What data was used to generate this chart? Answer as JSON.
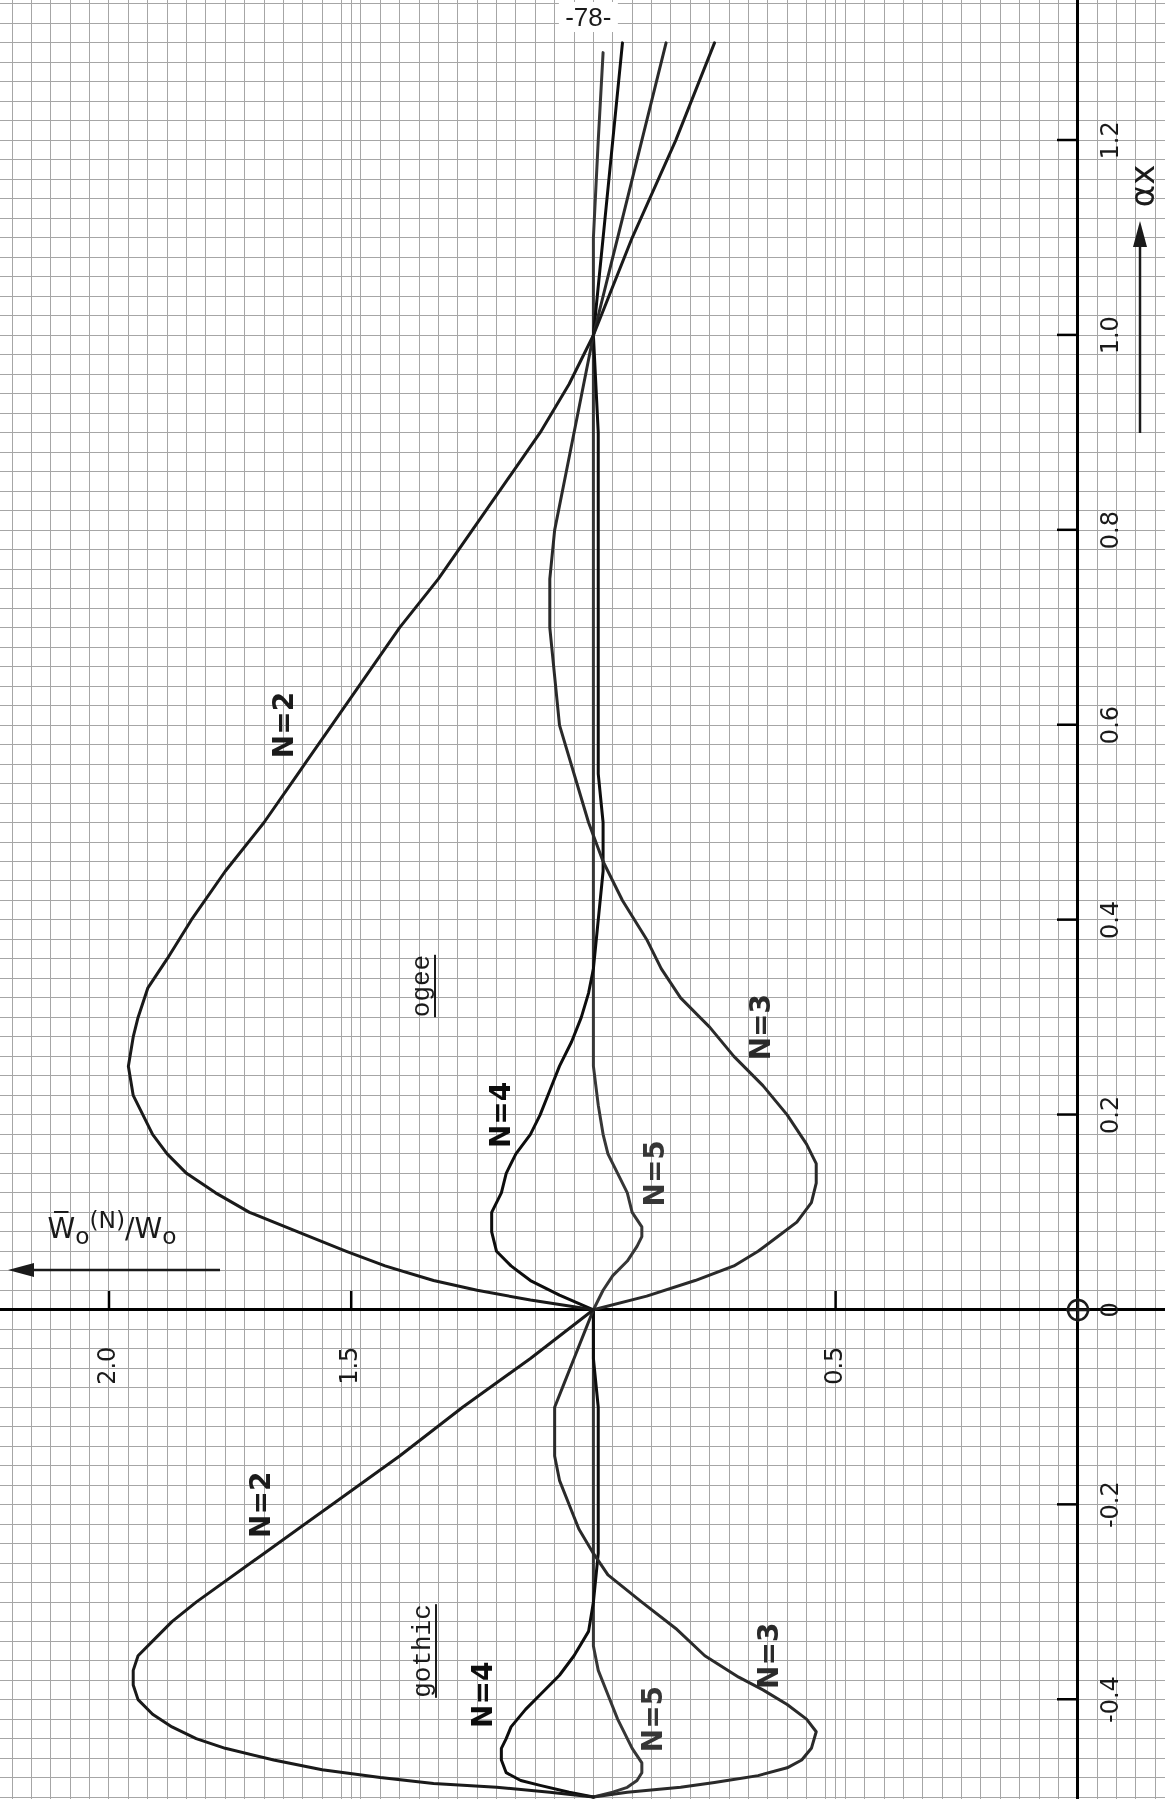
{
  "chart_data": {
    "type": "line",
    "xlabel": "W̅$_{o}$$^{(N)}$/W$_{o}$",
    "ylabel": "αx",
    "xlim": [
      2.225,
      -0.18
    ],
    "ylim": [
      -0.502,
      1.344
    ],
    "xticks": [
      {
        "value": -0.16,
        "label": null
      },
      {
        "value": -0.12,
        "label": null
      },
      {
        "value": -0.08,
        "label": null
      },
      {
        "value": -0.04,
        "label": null
      },
      {
        "value": 0,
        "label": null
      },
      {
        "value": 0.04,
        "label": null
      },
      {
        "value": 0.08,
        "label": null
      },
      {
        "value": 0.12,
        "label": null
      },
      {
        "value": 0.16,
        "label": null
      },
      {
        "value": 0.2,
        "label": null
      },
      {
        "value": 0.24,
        "label": null
      },
      {
        "value": 0.28,
        "label": null
      },
      {
        "value": 0.32,
        "label": null
      },
      {
        "value": 0.36,
        "label": null
      },
      {
        "value": 0.4,
        "label": null
      },
      {
        "value": 0.44,
        "label": null
      },
      {
        "value": 0.48,
        "label": null
      },
      0.5,
      {
        "value": 0.52,
        "label": null
      },
      {
        "value": 0.56,
        "label": null
      },
      {
        "value": 0.6,
        "label": null
      },
      {
        "value": 0.64,
        "label": null
      },
      {
        "value": 0.68,
        "label": null
      },
      {
        "value": 0.72,
        "label": null
      },
      {
        "value": 0.76,
        "label": null
      },
      {
        "value": 0.8,
        "label": null
      },
      {
        "value": 0.84,
        "label": null
      },
      {
        "value": 0.88,
        "label": null
      },
      {
        "value": 0.92,
        "label": null
      },
      {
        "value": 0.96,
        "label": null
      },
      {
        "value": 1,
        "label": null
      },
      {
        "value": 1.04,
        "label": null
      },
      {
        "value": 1.08,
        "label": null
      },
      {
        "value": 1.12,
        "label": null
      },
      {
        "value": 1.16,
        "label": null
      },
      {
        "value": 1.2,
        "label": null
      },
      {
        "value": 1.24,
        "label": null
      },
      {
        "value": 1.28,
        "label": null
      },
      {
        "value": 1.32,
        "label": null
      },
      {
        "value": 1.36,
        "label": null
      },
      {
        "value": 1.4,
        "label": null
      },
      {
        "value": 1.44,
        "label": null
      },
      {
        "value": 1.48,
        "label": null
      },
      1.5,
      {
        "value": 1.52,
        "label": null
      },
      {
        "value": 1.56,
        "label": null
      },
      {
        "value": 1.6,
        "label": null
      },
      {
        "value": 1.64,
        "label": null
      },
      {
        "value": 1.68,
        "label": null
      },
      {
        "value": 1.72,
        "label": null
      },
      {
        "value": 1.76,
        "label": null
      },
      {
        "value": 1.8,
        "label": null
      },
      {
        "value": 1.84,
        "label": null
      },
      {
        "value": 1.88,
        "label": null
      },
      {
        "value": 1.92,
        "label": null
      },
      {
        "value": 1.96,
        "label": null
      },
      {
        "value": 2,
        "label": "2.0"
      },
      {
        "value": 2.04,
        "label": null
      },
      {
        "value": 2.08,
        "label": null
      },
      {
        "value": 2.12,
        "label": null
      },
      {
        "value": 2.16,
        "label": null
      },
      {
        "value": 2.2,
        "label": null
      }
    ],
    "yticks": [
      {
        "value": -0.5,
        "label": null
      },
      {
        "value": -0.48,
        "label": null
      },
      {
        "value": -0.46,
        "label": null
      },
      {
        "value": -0.44,
        "label": null
      },
      {
        "value": -0.42,
        "label": null
      },
      -0.4,
      {
        "value": -0.38,
        "label": null
      },
      {
        "value": -0.36,
        "label": null
      },
      {
        "value": -0.34,
        "label": null
      },
      {
        "value": -0.32,
        "label": null
      },
      {
        "value": -0.3,
        "label": null
      },
      {
        "value": -0.28,
        "label": null
      },
      {
        "value": -0.26,
        "label": null
      },
      {
        "value": -0.24,
        "label": null
      },
      {
        "value": -0.22,
        "label": null
      },
      -0.2,
      {
        "value": -0.18,
        "label": null
      },
      {
        "value": -0.16,
        "label": null
      },
      {
        "value": -0.14,
        "label": null
      },
      {
        "value": -0.12,
        "label": null
      },
      {
        "value": -0.1,
        "label": null
      },
      {
        "value": -0.08,
        "label": null
      },
      {
        "value": -0.06,
        "label": null
      },
      {
        "value": -0.04,
        "label": null
      },
      {
        "value": -0.02,
        "label": null
      },
      0,
      {
        "value": 0.02,
        "label": null
      },
      {
        "value": 0.04,
        "label": null
      },
      {
        "value": 0.06,
        "label": null
      },
      {
        "value": 0.08,
        "label": null
      },
      {
        "value": 0.1,
        "label": null
      },
      {
        "value": 0.12,
        "label": null
      },
      {
        "value": 0.14,
        "label": null
      },
      {
        "value": 0.16,
        "label": null
      },
      {
        "value": 0.18,
        "label": null
      },
      0.2,
      {
        "value": 0.22,
        "label": null
      },
      {
        "value": 0.24,
        "label": null
      },
      {
        "value": 0.26,
        "label": null
      },
      {
        "value": 0.28,
        "label": null
      },
      {
        "value": 0.3,
        "label": null
      },
      {
        "value": 0.32,
        "label": null
      },
      {
        "value": 0.34,
        "label": null
      },
      {
        "value": 0.36,
        "label": null
      },
      {
        "value": 0.38,
        "label": null
      },
      0.4,
      {
        "value": 0.42,
        "label": null
      },
      {
        "value": 0.44,
        "label": null
      },
      {
        "value": 0.46,
        "label": null
      },
      {
        "value": 0.48,
        "label": null
      },
      {
        "value": 0.5,
        "label": null
      },
      {
        "value": 0.52,
        "label": null
      },
      {
        "value": 0.54,
        "label": null
      },
      {
        "value": 0.56,
        "label": null
      },
      {
        "value": 0.58,
        "label": null
      },
      0.6,
      {
        "value": 0.62,
        "label": null
      },
      {
        "value": 0.64,
        "label": null
      },
      {
        "value": 0.66,
        "label": null
      },
      {
        "value": 0.68,
        "label": null
      },
      {
        "value": 0.7,
        "label": null
      },
      {
        "value": 0.72,
        "label": null
      },
      {
        "value": 0.74,
        "label": null
      },
      {
        "value": 0.76,
        "label": null
      },
      {
        "value": 0.78,
        "label": null
      },
      0.8,
      {
        "value": 0.82,
        "label": null
      },
      {
        "value": 0.84,
        "label": null
      },
      {
        "value": 0.86,
        "label": null
      },
      {
        "value": 0.88,
        "label": null
      },
      {
        "value": 0.9,
        "label": null
      },
      {
        "value": 0.92,
        "label": null
      },
      {
        "value": 0.94,
        "label": null
      },
      {
        "value": 0.96,
        "label": null
      },
      {
        "value": 0.98,
        "label": null
      },
      {
        "value": 1,
        "label": "1.0"
      },
      {
        "value": 1.02,
        "label": null
      },
      {
        "value": 1.04,
        "label": null
      },
      {
        "value": 1.06,
        "label": null
      },
      {
        "value": 1.08,
        "label": null
      },
      {
        "value": 1.1,
        "label": null
      },
      {
        "value": 1.12,
        "label": null
      },
      {
        "value": 1.14,
        "label": null
      },
      {
        "value": 1.16,
        "label": null
      },
      {
        "value": 1.18,
        "label": null
      },
      1.2,
      {
        "value": 1.22,
        "label": null
      },
      {
        "value": 1.24,
        "label": null
      },
      {
        "value": 1.26,
        "label": null
      },
      {
        "value": 1.28,
        "label": null
      },
      {
        "value": 1.3,
        "label": null
      },
      {
        "value": 1.32,
        "label": null
      },
      {
        "value": 1.34,
        "label": null
      }
    ],
    "grid": true,
    "series": [
      {
        "name": "N=2",
        "color": "#1a1a1a",
        "values": [
          -0.5,
          -0.495,
          -0.49,
          -0.486,
          -0.48,
          -0.472,
          -0.462,
          -0.45,
          -0.44,
          -0.428,
          -0.415,
          -0.4,
          -0.385,
          -0.37,
          -0.355,
          -0.34,
          -0.32,
          -0.3,
          -0.25,
          -0.2,
          -0.15,
          -0.1,
          -0.05,
          0,
          0.01,
          0.02,
          0.03,
          0.045,
          0.06,
          0.08,
          0.1,
          0.12,
          0.14,
          0.16,
          0.18,
          0.2,
          0.22,
          0.25,
          0.28,
          0.3,
          0.33,
          0.36,
          0.4,
          0.45,
          0.5,
          0.55,
          0.6,
          0.65,
          0.7,
          0.75,
          0.8,
          0.85,
          0.9,
          0.95,
          1,
          1.1,
          1.2,
          1.3
        ],
        "x": [
          1,
          1.09,
          1.2,
          1.33,
          1.44,
          1.56,
          1.66,
          1.76,
          1.82,
          1.87,
          1.91,
          1.94,
          1.95,
          1.95,
          1.94,
          1.91,
          1.87,
          1.82,
          1.68,
          1.54,
          1.4,
          1.27,
          1.13,
          1,
          1.13,
          1.24,
          1.33,
          1.43,
          1.51,
          1.61,
          1.71,
          1.78,
          1.84,
          1.88,
          1.91,
          1.93,
          1.95,
          1.96,
          1.95,
          1.94,
          1.92,
          1.88,
          1.83,
          1.76,
          1.68,
          1.61,
          1.54,
          1.47,
          1.4,
          1.32,
          1.25,
          1.18,
          1.11,
          1.05,
          1,
          0.92,
          0.83,
          0.75
        ]
      },
      {
        "name": "N=3",
        "color": "#2a2a2a",
        "values": [
          -0.5,
          -0.495,
          -0.49,
          -0.485,
          -0.478,
          -0.47,
          -0.462,
          -0.45,
          -0.433,
          -0.42,
          -0.405,
          -0.39,
          -0.377,
          -0.355,
          -0.327,
          -0.3,
          -0.272,
          -0.25,
          -0.225,
          -0.2,
          -0.175,
          -0.15,
          -0.1,
          -0.075,
          -0.05,
          -0.025,
          0,
          0.014,
          0.03,
          0.045,
          0.06,
          0.075,
          0.09,
          0.11,
          0.13,
          0.15,
          0.17,
          0.2,
          0.23,
          0.26,
          0.29,
          0.32,
          0.35,
          0.38,
          0.42,
          0.46,
          0.5,
          0.55,
          0.6,
          0.65,
          0.7,
          0.75,
          0.8,
          0.85,
          0.9,
          0.95,
          1,
          1.1,
          1.2,
          1.3
        ],
        "x": [
          1,
          0.93,
          0.82,
          0.75,
          0.66,
          0.6,
          0.57,
          0.55,
          0.54,
          0.56,
          0.6,
          0.65,
          0.7,
          0.77,
          0.83,
          0.9,
          0.97,
          1,
          1.03,
          1.05,
          1.07,
          1.08,
          1.08,
          1.06,
          1.04,
          1.02,
          1,
          0.89,
          0.79,
          0.71,
          0.66,
          0.62,
          0.58,
          0.55,
          0.54,
          0.54,
          0.56,
          0.6,
          0.65,
          0.71,
          0.76,
          0.82,
          0.86,
          0.89,
          0.94,
          0.98,
          1.01,
          1.04,
          1.07,
          1.08,
          1.09,
          1.09,
          1.08,
          1.06,
          1.04,
          1.02,
          1,
          0.95,
          0.9,
          0.85
        ]
      },
      {
        "name": "N=4",
        "color": "#0d0d0d",
        "values": [
          -0.5,
          -0.495,
          -0.488,
          -0.483,
          -0.475,
          -0.462,
          -0.45,
          -0.44,
          -0.428,
          -0.41,
          -0.395,
          -0.375,
          -0.355,
          -0.33,
          -0.3,
          -0.25,
          -0.1,
          -0.05,
          0,
          0.015,
          0.03,
          0.045,
          0.06,
          0.08,
          0.1,
          0.12,
          0.14,
          0.16,
          0.18,
          0.2,
          0.225,
          0.25,
          0.275,
          0.3,
          0.325,
          0.35,
          0.4,
          0.45,
          0.5,
          0.55,
          0.9,
          1,
          1.1,
          1.2,
          1.3
        ],
        "x": [
          1,
          1.05,
          1.11,
          1.15,
          1.18,
          1.19,
          1.19,
          1.18,
          1.17,
          1.14,
          1.11,
          1.07,
          1.04,
          1.01,
          1,
          0.99,
          0.99,
          1,
          1,
          1.07,
          1.13,
          1.17,
          1.2,
          1.21,
          1.21,
          1.19,
          1.18,
          1.16,
          1.13,
          1.11,
          1.09,
          1.07,
          1.045,
          1.025,
          1.01,
          1,
          0.99,
          0.98,
          0.98,
          0.99,
          0.99,
          1,
          0.98,
          0.96,
          0.94
        ]
      },
      {
        "name": "N=5",
        "color": "#363636",
        "values": [
          -0.5,
          -0.495,
          -0.49,
          -0.483,
          -0.475,
          -0.465,
          -0.45,
          -0.44,
          -0.42,
          -0.395,
          -0.37,
          -0.345,
          0,
          0.02,
          0.035,
          0.05,
          0.065,
          0.075,
          0.085,
          0.1,
          0.12,
          0.14,
          0.16,
          0.18,
          0.21,
          0.25,
          1.1,
          1.2,
          1.29
        ],
        "x": [
          1,
          0.96,
          0.93,
          0.91,
          0.9,
          0.9,
          0.92,
          0.93,
          0.95,
          0.97,
          0.99,
          1,
          1,
          0.98,
          0.96,
          0.93,
          0.91,
          0.9,
          0.9,
          0.92,
          0.93,
          0.95,
          0.97,
          0.98,
          0.99,
          1,
          1,
          0.99,
          0.98
        ]
      }
    ],
    "annotations": [
      "-78-",
      "ogee",
      "gothic"
    ]
  }
}
